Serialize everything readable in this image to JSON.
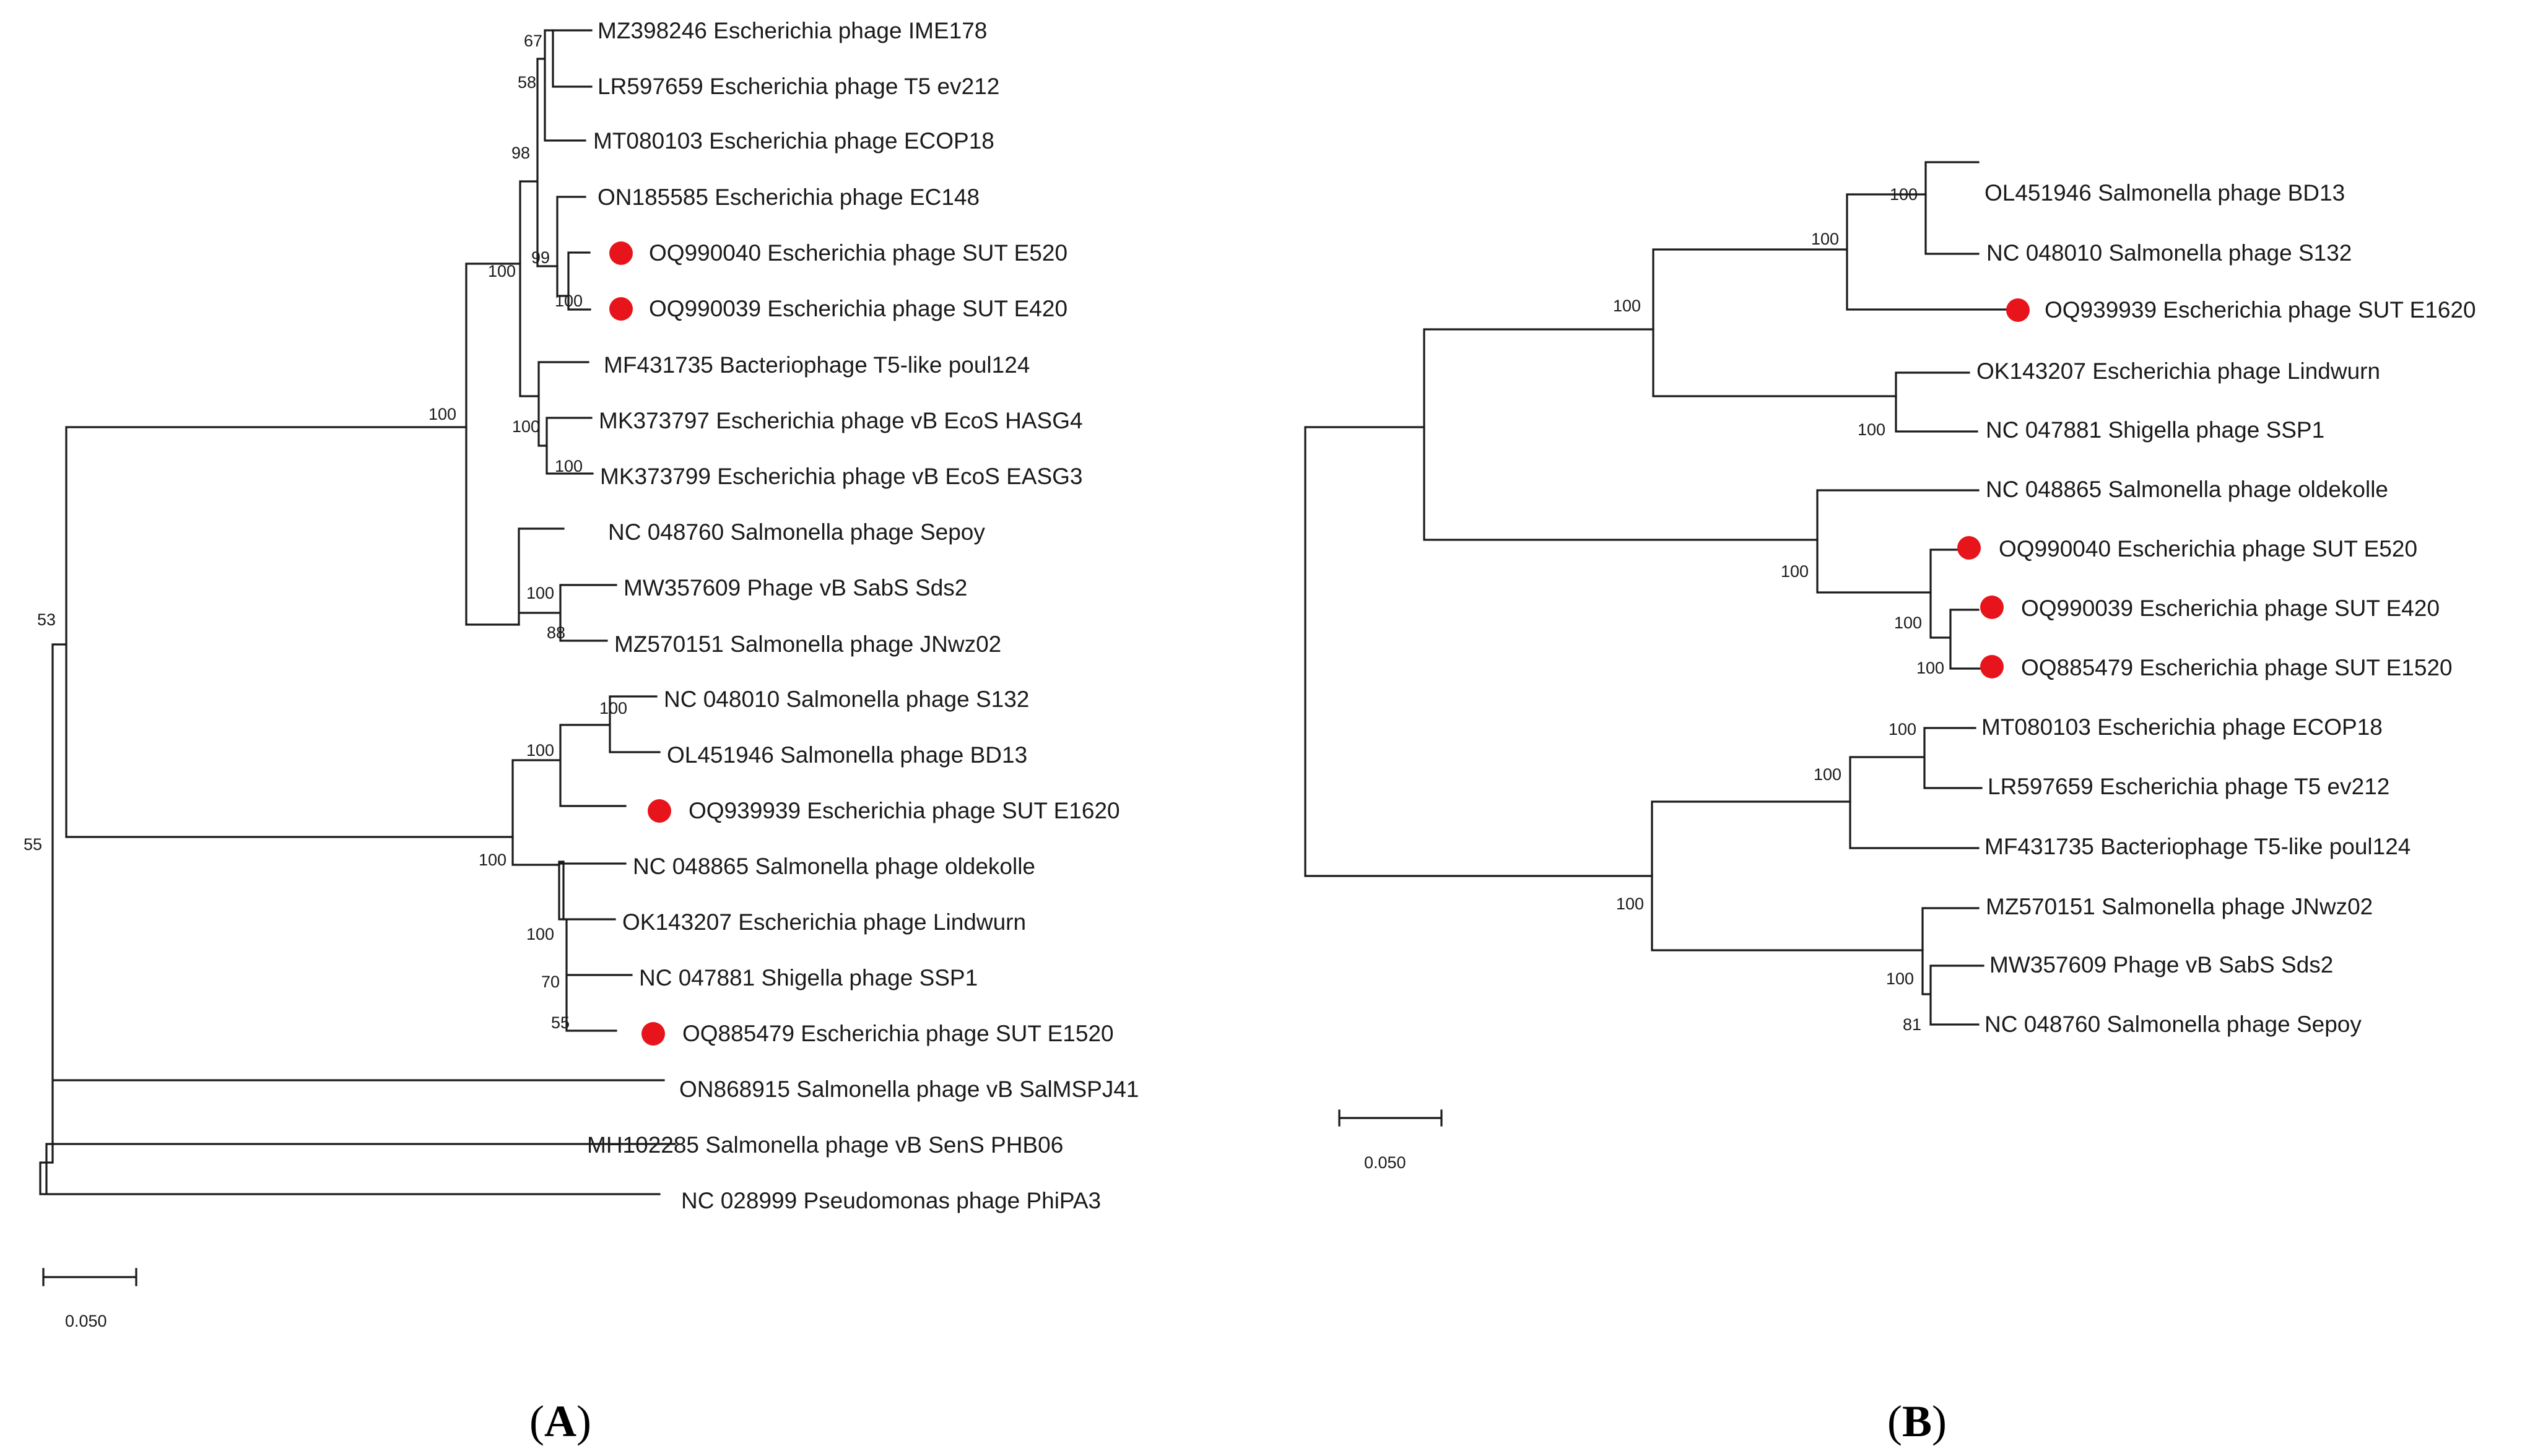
{
  "figure": {
    "marker_color": "#e8141c",
    "line_color": "#1a1a1a",
    "panels": [
      {
        "id": "A",
        "label_open": "(",
        "label_letter": "A",
        "label_close": ")",
        "scale_bar_label": "0.050",
        "leaves": [
          {
            "text": "MZ398246 Escherichia phage IME178",
            "marker": false
          },
          {
            "text": "LR597659 Escherichia phage T5 ev212",
            "marker": false
          },
          {
            "text": "MT080103 Escherichia phage ECOP18",
            "marker": false
          },
          {
            "text": "ON185585 Escherichia phage EC148",
            "marker": false
          },
          {
            "text": "OQ990040 Escherichia phage SUT E520",
            "marker": true
          },
          {
            "text": "OQ990039 Escherichia phage SUT E420",
            "marker": true
          },
          {
            "text": "MF431735 Bacteriophage T5-like poul124",
            "marker": false
          },
          {
            "text": "MK373797 Escherichia phage vB EcoS HASG4",
            "marker": false
          },
          {
            "text": "MK373799 Escherichia phage vB EcoS EASG3",
            "marker": false
          },
          {
            "text": "NC 048760 Salmonella phage Sepoy",
            "marker": false
          },
          {
            "text": "MW357609 Phage vB SabS Sds2",
            "marker": false
          },
          {
            "text": "MZ570151 Salmonella phage JNwz02",
            "marker": false
          },
          {
            "text": "NC 048010 Salmonella phage S132",
            "marker": false
          },
          {
            "text": "OL451946 Salmonella phage BD13",
            "marker": false
          },
          {
            "text": "OQ939939 Escherichia phage SUT E1620",
            "marker": true
          },
          {
            "text": "NC 048865 Salmonella phage oldekolle",
            "marker": false
          },
          {
            "text": "OK143207 Escherichia phage Lindwurn",
            "marker": false
          },
          {
            "text": "NC 047881 Shigella phage SSP1",
            "marker": false
          },
          {
            "text": "OQ885479 Escherichia phage SUT E1520",
            "marker": true
          },
          {
            "text": "ON868915 Salmonella phage vB SalMSPJ41",
            "marker": false
          },
          {
            "text": "MH102285 Salmonella phage vB SenS PHB06",
            "marker": false
          },
          {
            "text": "NC 028999 Pseudomonas phage PhiPA3",
            "marker": false
          }
        ],
        "bootstrap": [
          "67",
          "58",
          "98",
          "99",
          "100",
          "100",
          "100",
          "100",
          "100",
          "88",
          "100",
          "100",
          "100",
          "100",
          "70",
          "55",
          "100",
          "53",
          "55"
        ]
      },
      {
        "id": "B",
        "label_open": "(",
        "label_letter": "B",
        "label_close": ")",
        "scale_bar_label": "0.050",
        "leaves": [
          {
            "text": "OL451946 Salmonella phage BD13",
            "marker": false
          },
          {
            "text": "NC 048010 Salmonella phage S132",
            "marker": false
          },
          {
            "text": "OQ939939 Escherichia phage SUT E1620",
            "marker": true
          },
          {
            "text": "OK143207 Escherichia phage Lindwurn",
            "marker": false
          },
          {
            "text": "NC 047881 Shigella phage SSP1",
            "marker": false
          },
          {
            "text": "NC 048865 Salmonella phage oldekolle",
            "marker": false
          },
          {
            "text": "OQ990040 Escherichia phage SUT E520",
            "marker": true
          },
          {
            "text": "OQ990039 Escherichia phage SUT E420",
            "marker": true
          },
          {
            "text": "OQ885479 Escherichia phage SUT E1520",
            "marker": true
          },
          {
            "text": "MT080103 Escherichia phage ECOP18",
            "marker": false
          },
          {
            "text": "LR597659 Escherichia phage T5 ev212",
            "marker": false
          },
          {
            "text": "MF431735 Bacteriophage T5-like poul124",
            "marker": false
          },
          {
            "text": "MZ570151 Salmonella phage JNwz02",
            "marker": false
          },
          {
            "text": "MW357609 Phage vB SabS Sds2",
            "marker": false
          },
          {
            "text": "NC 048760 Salmonella phage Sepoy",
            "marker": false
          }
        ],
        "bootstrap": [
          "100",
          "100",
          "100",
          "100",
          "100",
          "100",
          "100",
          "100",
          "100",
          "100",
          "100",
          "81"
        ]
      }
    ]
  }
}
